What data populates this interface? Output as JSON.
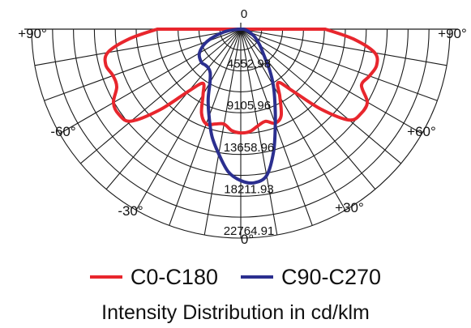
{
  "chart_data": {
    "type": "polar",
    "title": "Intensity Distribution in cd/klm",
    "angle_labels": {
      "top": "0",
      "bottom": "0°",
      "left_top": "+90°",
      "right_top": "+90°",
      "left_mid": "-60°",
      "right_mid": "+60°",
      "left_low": "-30°",
      "right_low": "+30°"
    },
    "ring_labels": [
      "4552.98",
      "9105.96",
      "13658.96",
      "18211.93",
      "22764.91"
    ],
    "rmax": 22764.91,
    "series": [
      {
        "name": "C0-C180",
        "color": "#e8262d",
        "points": [
          [
            -90,
            9100
          ],
          [
            -85,
            12200
          ],
          [
            -80,
            14700
          ],
          [
            -75,
            15200
          ],
          [
            -70,
            14800
          ],
          [
            -65,
            14900
          ],
          [
            -60,
            16000
          ],
          [
            -55,
            16200
          ],
          [
            -50,
            15600
          ],
          [
            -45,
            12400
          ],
          [
            -40,
            8800
          ],
          [
            -35,
            7200
          ],
          [
            -30,
            8200
          ],
          [
            -25,
            10100
          ],
          [
            -20,
            11000
          ],
          [
            -15,
            10700
          ],
          [
            -10,
            10500
          ],
          [
            -5,
            11100
          ],
          [
            0,
            11300
          ],
          [
            5,
            11200
          ],
          [
            10,
            10700
          ],
          [
            15,
            10400
          ],
          [
            20,
            10900
          ],
          [
            25,
            10400
          ],
          [
            30,
            8500
          ],
          [
            35,
            7100
          ],
          [
            40,
            8800
          ],
          [
            45,
            12300
          ],
          [
            50,
            15400
          ],
          [
            55,
            16000
          ],
          [
            60,
            15900
          ],
          [
            65,
            14500
          ],
          [
            70,
            14900
          ],
          [
            75,
            15300
          ],
          [
            80,
            14800
          ],
          [
            85,
            12300
          ],
          [
            90,
            9200
          ]
        ]
      },
      {
        "name": "C90-C270",
        "color": "#2b2f8f",
        "points": [
          [
            -90,
            300
          ],
          [
            -80,
            1900
          ],
          [
            -70,
            3900
          ],
          [
            -60,
            5200
          ],
          [
            -50,
            5600
          ],
          [
            -45,
            5500
          ],
          [
            -40,
            5500
          ],
          [
            -35,
            5800
          ],
          [
            -30,
            6700
          ],
          [
            -25,
            8400
          ],
          [
            -20,
            10100
          ],
          [
            -15,
            12100
          ],
          [
            -10,
            13800
          ],
          [
            -5,
            15600
          ],
          [
            0,
            16500
          ],
          [
            5,
            16800
          ],
          [
            10,
            16200
          ],
          [
            15,
            13800
          ],
          [
            20,
            11000
          ],
          [
            25,
            8800
          ],
          [
            30,
            7100
          ],
          [
            35,
            5500
          ],
          [
            40,
            4100
          ],
          [
            50,
            2700
          ],
          [
            60,
            1800
          ],
          [
            70,
            1100
          ],
          [
            80,
            600
          ],
          [
            90,
            300
          ]
        ]
      }
    ],
    "legend_position": "bottom",
    "grid": true
  }
}
